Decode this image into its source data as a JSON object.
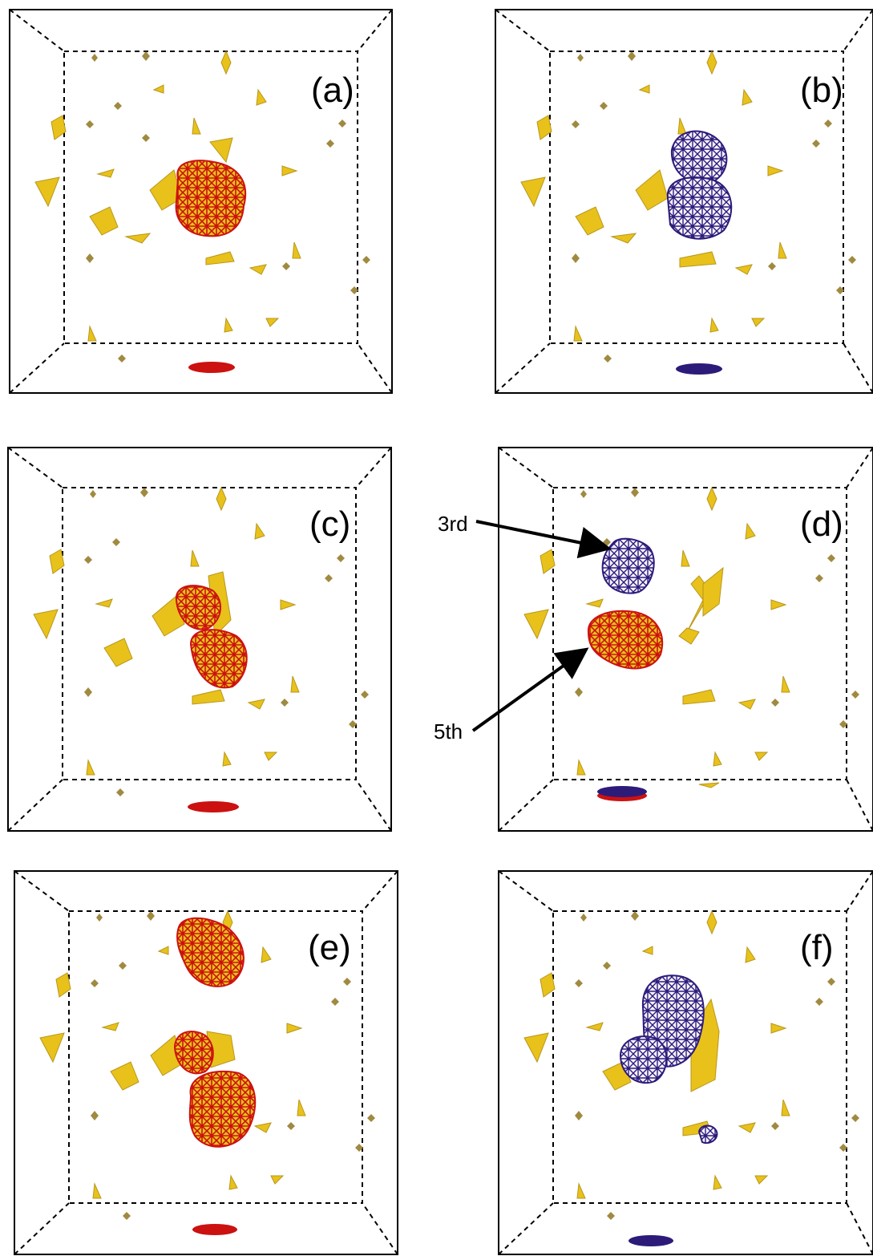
{
  "figure": {
    "panels": [
      {
        "id": "a",
        "label": "(a)",
        "blob_color": "#cc1111",
        "lobes": 1
      },
      {
        "id": "b",
        "label": "(b)",
        "blob_color": "#2d1b7a",
        "lobes": 2
      },
      {
        "id": "c",
        "label": "(c)",
        "blob_color": "#cc1111",
        "lobes": 2
      },
      {
        "id": "d",
        "label": "(d)",
        "blob_color": "#2d1b7a",
        "lobes": 2
      },
      {
        "id": "e",
        "label": "(e)",
        "blob_color": "#cc1111",
        "lobes": 3
      },
      {
        "id": "f",
        "label": "(f)",
        "blob_color": "#2d1b7a",
        "lobes": 2
      }
    ],
    "annotations": {
      "third_label": "3rd",
      "fifth_label": "5th"
    },
    "colors": {
      "red_mesh": "#cc1111",
      "blue_mesh": "#2d1b7a",
      "gold": "#e8c21a",
      "gold_dark": "#b8961a",
      "frame": "#000000"
    }
  }
}
